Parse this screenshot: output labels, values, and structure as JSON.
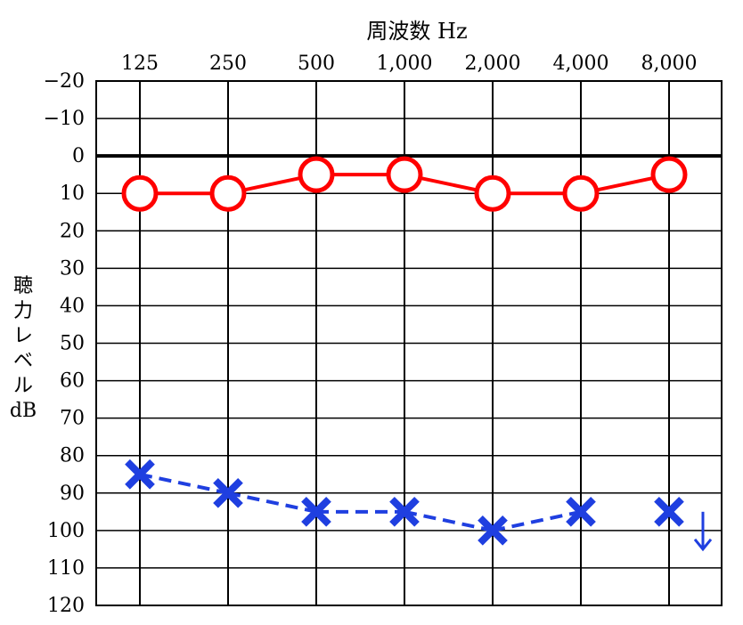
{
  "chart_data": {
    "type": "line",
    "title": "周波数 Hz",
    "ylabel": "聴力レベル dB",
    "categories": [
      "125",
      "250",
      "500",
      "1,000",
      "2,000",
      "4,000",
      "8,000"
    ],
    "y_ticks": [
      "−20",
      "−10",
      "0",
      "10",
      "20",
      "30",
      "40",
      "50",
      "60",
      "70",
      "80",
      "90",
      "100",
      "110",
      "120"
    ],
    "ylim": [
      -20,
      120
    ],
    "y_inverted": true,
    "grid": true,
    "series": [
      {
        "marker": "circle",
        "line": "solid",
        "color": "#ff0000",
        "values": [
          10,
          10,
          5,
          5,
          10,
          10,
          5
        ],
        "connect_to_next": [
          true,
          true,
          true,
          true,
          true,
          true
        ]
      },
      {
        "marker": "cross",
        "line": "dashed",
        "color": "#1f3fe0",
        "values": [
          85,
          90,
          95,
          95,
          100,
          95,
          95
        ],
        "connect_to_next": [
          true,
          true,
          true,
          true,
          true,
          false
        ],
        "no_response": [
          false,
          false,
          false,
          false,
          false,
          false,
          true
        ]
      }
    ]
  }
}
